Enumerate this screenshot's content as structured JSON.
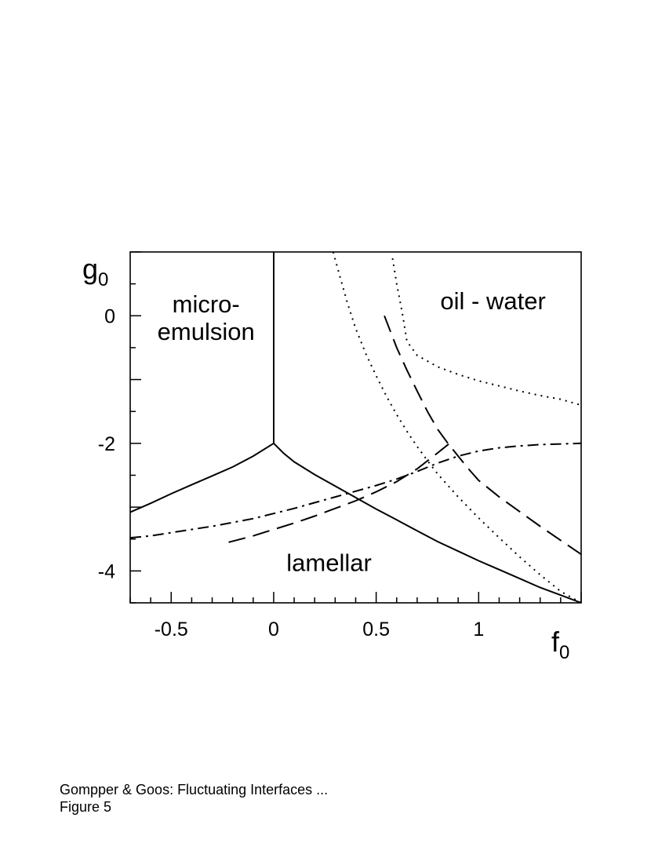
{
  "chart_data": {
    "type": "line",
    "xlabel": {
      "main": "f",
      "sub": "0"
    },
    "ylabel": {
      "main": "g",
      "sub": "0"
    },
    "xlim": [
      -0.7,
      1.5
    ],
    "ylim": [
      -4.5,
      1.0
    ],
    "xticks_labeled": [
      {
        "value": -0.5,
        "label": "-0.5"
      },
      {
        "value": 0,
        "label": "0"
      },
      {
        "value": 0.5,
        "label": "0.5"
      },
      {
        "value": 1,
        "label": "1"
      }
    ],
    "yticks_labeled": [
      {
        "value": 0,
        "label": "0"
      },
      {
        "value": -2,
        "label": "-2"
      },
      {
        "value": -4,
        "label": "-4"
      }
    ],
    "x_minor_step": 0.1,
    "y_minor_step": 0.5,
    "grid": false,
    "legend": "none",
    "region_labels": [
      {
        "lines": [
          "micro-",
          "emulsion"
        ],
        "x": -0.33,
        "y": 0.05
      },
      {
        "lines": [
          "oil - water"
        ],
        "x": 1.07,
        "y": 0.1
      },
      {
        "lines": [
          "lamellar"
        ],
        "x": 0.27,
        "y": -4.0
      }
    ],
    "series": [
      {
        "style": "solid",
        "points": [
          [
            0,
            1.0
          ],
          [
            0,
            -2.0
          ]
        ]
      },
      {
        "style": "solid",
        "points": [
          [
            -0.7,
            -3.08
          ],
          [
            -0.6,
            -2.94
          ],
          [
            -0.5,
            -2.79
          ],
          [
            -0.4,
            -2.65
          ],
          [
            -0.3,
            -2.51
          ],
          [
            -0.2,
            -2.37
          ],
          [
            -0.1,
            -2.2
          ],
          [
            0,
            -2.0
          ]
        ]
      },
      {
        "style": "solid",
        "points": [
          [
            0,
            -2.0
          ],
          [
            0.05,
            -2.16
          ],
          [
            0.1,
            -2.29
          ],
          [
            0.2,
            -2.49
          ],
          [
            0.3,
            -2.67
          ],
          [
            0.4,
            -2.85
          ],
          [
            0.5,
            -3.03
          ],
          [
            0.6,
            -3.2
          ],
          [
            0.7,
            -3.37
          ],
          [
            0.8,
            -3.54
          ],
          [
            0.9,
            -3.69
          ],
          [
            1.0,
            -3.84
          ],
          [
            1.1,
            -3.98
          ],
          [
            1.2,
            -4.12
          ],
          [
            1.3,
            -4.26
          ],
          [
            1.4,
            -4.38
          ],
          [
            1.5,
            -4.5
          ]
        ]
      },
      {
        "style": "dotted",
        "points": [
          [
            0.29,
            1.0
          ],
          [
            0.32,
            0.65
          ],
          [
            0.36,
            0.2
          ],
          [
            0.4,
            -0.2
          ],
          [
            0.45,
            -0.6
          ],
          [
            0.5,
            -0.94
          ],
          [
            0.55,
            -1.26
          ],
          [
            0.6,
            -1.55
          ],
          [
            0.65,
            -1.81
          ],
          [
            0.7,
            -2.05
          ],
          [
            0.75,
            -2.27
          ],
          [
            0.8,
            -2.48
          ],
          [
            0.9,
            -2.84
          ],
          [
            1.0,
            -3.17
          ],
          [
            1.1,
            -3.48
          ],
          [
            1.2,
            -3.78
          ],
          [
            1.3,
            -4.06
          ],
          [
            1.4,
            -4.32
          ],
          [
            1.5,
            -4.5
          ]
        ]
      },
      {
        "style": "dotted",
        "points": [
          [
            0.58,
            0.9
          ],
          [
            0.6,
            0.5
          ],
          [
            0.63,
            0.0
          ],
          [
            0.65,
            -0.4
          ],
          [
            0.7,
            -0.62
          ],
          [
            0.8,
            -0.8
          ],
          [
            0.9,
            -0.92
          ],
          [
            1.0,
            -1.02
          ],
          [
            1.1,
            -1.1
          ],
          [
            1.2,
            -1.18
          ],
          [
            1.3,
            -1.25
          ],
          [
            1.4,
            -1.31
          ],
          [
            1.5,
            -1.4
          ]
        ]
      },
      {
        "style": "dashed",
        "points": [
          [
            0.54,
            0.0
          ],
          [
            0.6,
            -0.5
          ],
          [
            0.65,
            -0.85
          ],
          [
            0.7,
            -1.18
          ],
          [
            0.75,
            -1.5
          ],
          [
            0.8,
            -1.78
          ],
          [
            0.85,
            -2.0
          ],
          [
            0.9,
            -2.2
          ],
          [
            0.95,
            -2.4
          ],
          [
            1.0,
            -2.58
          ],
          [
            1.1,
            -2.84
          ],
          [
            1.2,
            -3.07
          ],
          [
            1.3,
            -3.3
          ],
          [
            1.4,
            -3.52
          ],
          [
            1.5,
            -3.74
          ]
        ]
      },
      {
        "style": "dashed",
        "points": [
          [
            -0.22,
            -3.55
          ],
          [
            -0.1,
            -3.45
          ],
          [
            0,
            -3.35
          ],
          [
            0.1,
            -3.25
          ],
          [
            0.2,
            -3.14
          ],
          [
            0.3,
            -3.02
          ],
          [
            0.4,
            -2.9
          ],
          [
            0.5,
            -2.76
          ],
          [
            0.6,
            -2.6
          ],
          [
            0.7,
            -2.4
          ],
          [
            0.8,
            -2.15
          ],
          [
            0.87,
            -1.97
          ]
        ]
      },
      {
        "style": "dashdot",
        "points": [
          [
            -0.7,
            -3.48
          ],
          [
            -0.6,
            -3.45
          ],
          [
            -0.5,
            -3.4
          ],
          [
            -0.4,
            -3.35
          ],
          [
            -0.3,
            -3.3
          ],
          [
            -0.2,
            -3.24
          ],
          [
            -0.1,
            -3.18
          ],
          [
            0,
            -3.1
          ],
          [
            0.1,
            -3.02
          ],
          [
            0.2,
            -2.93
          ],
          [
            0.3,
            -2.84
          ],
          [
            0.4,
            -2.75
          ],
          [
            0.5,
            -2.66
          ],
          [
            0.6,
            -2.56
          ],
          [
            0.7,
            -2.44
          ],
          [
            0.8,
            -2.31
          ],
          [
            0.9,
            -2.2
          ],
          [
            1.0,
            -2.12
          ],
          [
            1.1,
            -2.07
          ],
          [
            1.2,
            -2.04
          ],
          [
            1.3,
            -2.02
          ],
          [
            1.4,
            -2.01
          ],
          [
            1.5,
            -2.0
          ]
        ]
      }
    ]
  },
  "caption": {
    "line1": "Gompper & Goos: Fluctuating Interfaces ...",
    "line2": "Figure 5"
  }
}
